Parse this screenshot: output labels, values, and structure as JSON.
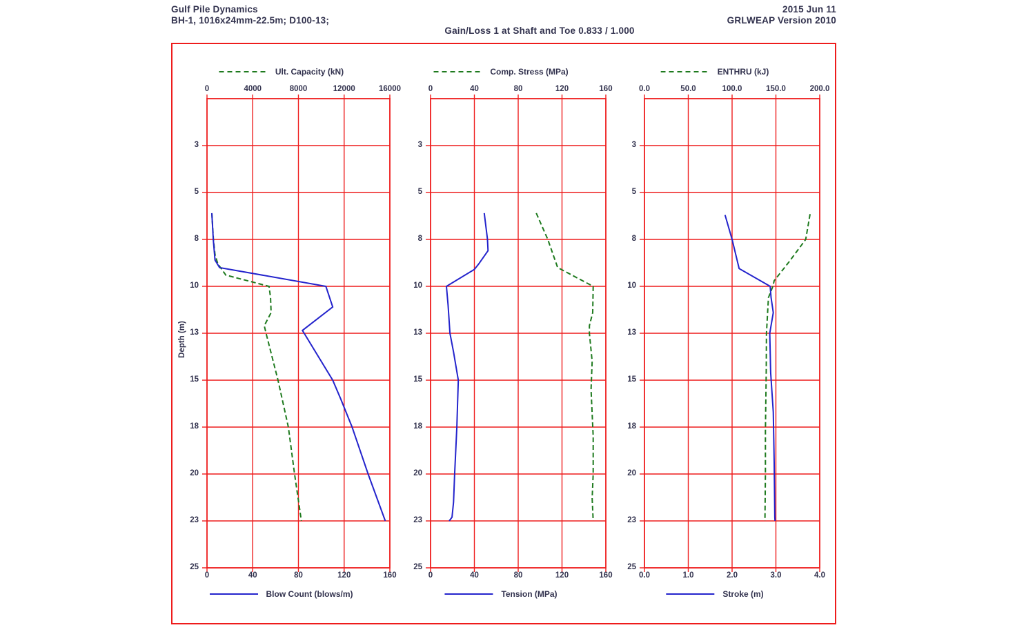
{
  "header": {
    "company": "Gulf Pile Dynamics",
    "pile": "BH-1, 1016x24mm-22.5m; D100-13;",
    "date": "2015 Jun 11",
    "version": "GRLWEAP Version 2010",
    "title": "Gain/Loss 1 at Shaft and Toe 0.833 / 1.000"
  },
  "colors": {
    "grid": "#ee1c1c",
    "blue": "#2323cc",
    "green": "#1e7a1e",
    "text": "#32324e"
  },
  "depth_axis": {
    "label": "Depth (m)",
    "lim": [
      0,
      25
    ],
    "tick_values": [
      2.5,
      5,
      7.5,
      10,
      12.5,
      15,
      17.5,
      20,
      22.5,
      25
    ],
    "tick_labels": [
      "3",
      "5",
      "8",
      "10",
      "13",
      "15",
      "18",
      "20",
      "23",
      "25"
    ]
  },
  "chart_data": [
    {
      "type": "line",
      "ylabel": "Depth (m)",
      "ylim": [
        0,
        25
      ],
      "grid": true,
      "top_axis": {
        "label": "Ult. Capacity (kN)",
        "max": 16000,
        "ticks": [
          "0",
          "4000",
          "8000",
          "12000",
          "16000"
        ]
      },
      "bottom_axis": {
        "label": "Blow Count (blows/m)",
        "max": 160,
        "ticks": [
          "0",
          "40",
          "80",
          "120",
          "160"
        ]
      },
      "series": [
        {
          "axis": "top",
          "style": "dashed",
          "color": "green",
          "points": [
            [
              6.1,
              420
            ],
            [
              7.5,
              560
            ],
            [
              8.3,
              700
            ],
            [
              8.8,
              950
            ],
            [
              9.4,
              1650
            ],
            [
              10,
              5430
            ],
            [
              10.6,
              5560
            ],
            [
              11.4,
              5610
            ],
            [
              12.1,
              5010
            ],
            [
              12.5,
              5170
            ],
            [
              15,
              6210
            ],
            [
              17.5,
              7120
            ],
            [
              20,
              7660
            ],
            [
              22.5,
              8260
            ]
          ]
        },
        {
          "axis": "bottom",
          "style": "solid",
          "color": "blue",
          "points": [
            [
              6.1,
              4.2
            ],
            [
              7.5,
              5.5
            ],
            [
              8.6,
              7
            ],
            [
              9,
              11
            ],
            [
              10,
              104
            ],
            [
              11.1,
              110
            ],
            [
              12.35,
              83.5
            ],
            [
              15,
              110
            ],
            [
              16,
              117
            ],
            [
              17.5,
              127
            ],
            [
              20,
              141
            ],
            [
              22.5,
              156
            ]
          ]
        }
      ]
    },
    {
      "type": "line",
      "ylabel": "Depth (m)",
      "ylim": [
        0,
        25
      ],
      "grid": true,
      "top_axis": {
        "label": "Comp. Stress (MPa)",
        "max": 160,
        "ticks": [
          "0",
          "40",
          "80",
          "120",
          "160"
        ]
      },
      "bottom_axis": {
        "label": "Tension (MPa)",
        "max": 160,
        "ticks": [
          "0",
          "40",
          "80",
          "120",
          "160"
        ]
      },
      "series": [
        {
          "axis": "top",
          "style": "dashed",
          "color": "green",
          "points": [
            [
              6.1,
              96.5
            ],
            [
              7.5,
              107
            ],
            [
              9,
              116
            ],
            [
              10,
              148.5
            ],
            [
              11.4,
              148
            ],
            [
              12.1,
              145
            ],
            [
              12.5,
              145
            ],
            [
              14,
              147.5
            ],
            [
              15.5,
              146.5
            ],
            [
              18,
              148.5
            ],
            [
              20,
              148.5
            ],
            [
              21.3,
              147.5
            ],
            [
              22.5,
              148.5
            ]
          ]
        },
        {
          "axis": "bottom",
          "style": "solid",
          "color": "blue",
          "points": [
            [
              6.1,
              49
            ],
            [
              7.5,
              52
            ],
            [
              8.1,
              52.5
            ],
            [
              8.8,
              44
            ],
            [
              9.1,
              40
            ],
            [
              10,
              14.5
            ],
            [
              11,
              16
            ],
            [
              12.5,
              17.7
            ],
            [
              13.5,
              21
            ],
            [
              15,
              25.3
            ],
            [
              17.5,
              24
            ],
            [
              20,
              22
            ],
            [
              21.5,
              21
            ],
            [
              22.3,
              19.6
            ],
            [
              22.5,
              17
            ]
          ]
        }
      ]
    },
    {
      "type": "line",
      "ylabel": "Depth (m)",
      "ylim": [
        0,
        25
      ],
      "grid": true,
      "top_axis": {
        "label": "ENTHRU (kJ)",
        "max": 200,
        "ticks": [
          "0.0",
          "50.0",
          "100.0",
          "150.0",
          "200.0"
        ]
      },
      "bottom_axis": {
        "label": "Stroke (m)",
        "max": 4,
        "ticks": [
          "0.0",
          "1.0",
          "2.0",
          "3.0",
          "4.0"
        ]
      },
      "series": [
        {
          "axis": "top",
          "style": "dashed",
          "color": "green",
          "points": [
            [
              6.15,
              189
            ],
            [
              7.5,
              184
            ],
            [
              8.7,
              165
            ],
            [
              9.7,
              148
            ],
            [
              10,
              146.5
            ],
            [
              10.6,
              141.5
            ],
            [
              12.5,
              139.2
            ],
            [
              14.5,
              139
            ],
            [
              17.7,
              138
            ],
            [
              20,
              138
            ],
            [
              22.5,
              137.5
            ]
          ]
        },
        {
          "axis": "bottom",
          "style": "solid",
          "color": "blue",
          "points": [
            [
              6.2,
              1.84
            ],
            [
              7.5,
              2.0
            ],
            [
              9.05,
              2.16
            ],
            [
              10,
              2.87
            ],
            [
              10.6,
              2.89
            ],
            [
              11.4,
              2.94
            ],
            [
              12.5,
              2.86
            ],
            [
              14.6,
              2.88
            ],
            [
              16.7,
              2.94
            ],
            [
              19.4,
              2.96
            ],
            [
              22.3,
              2.975
            ],
            [
              22.5,
              2.98
            ]
          ]
        }
      ]
    }
  ]
}
